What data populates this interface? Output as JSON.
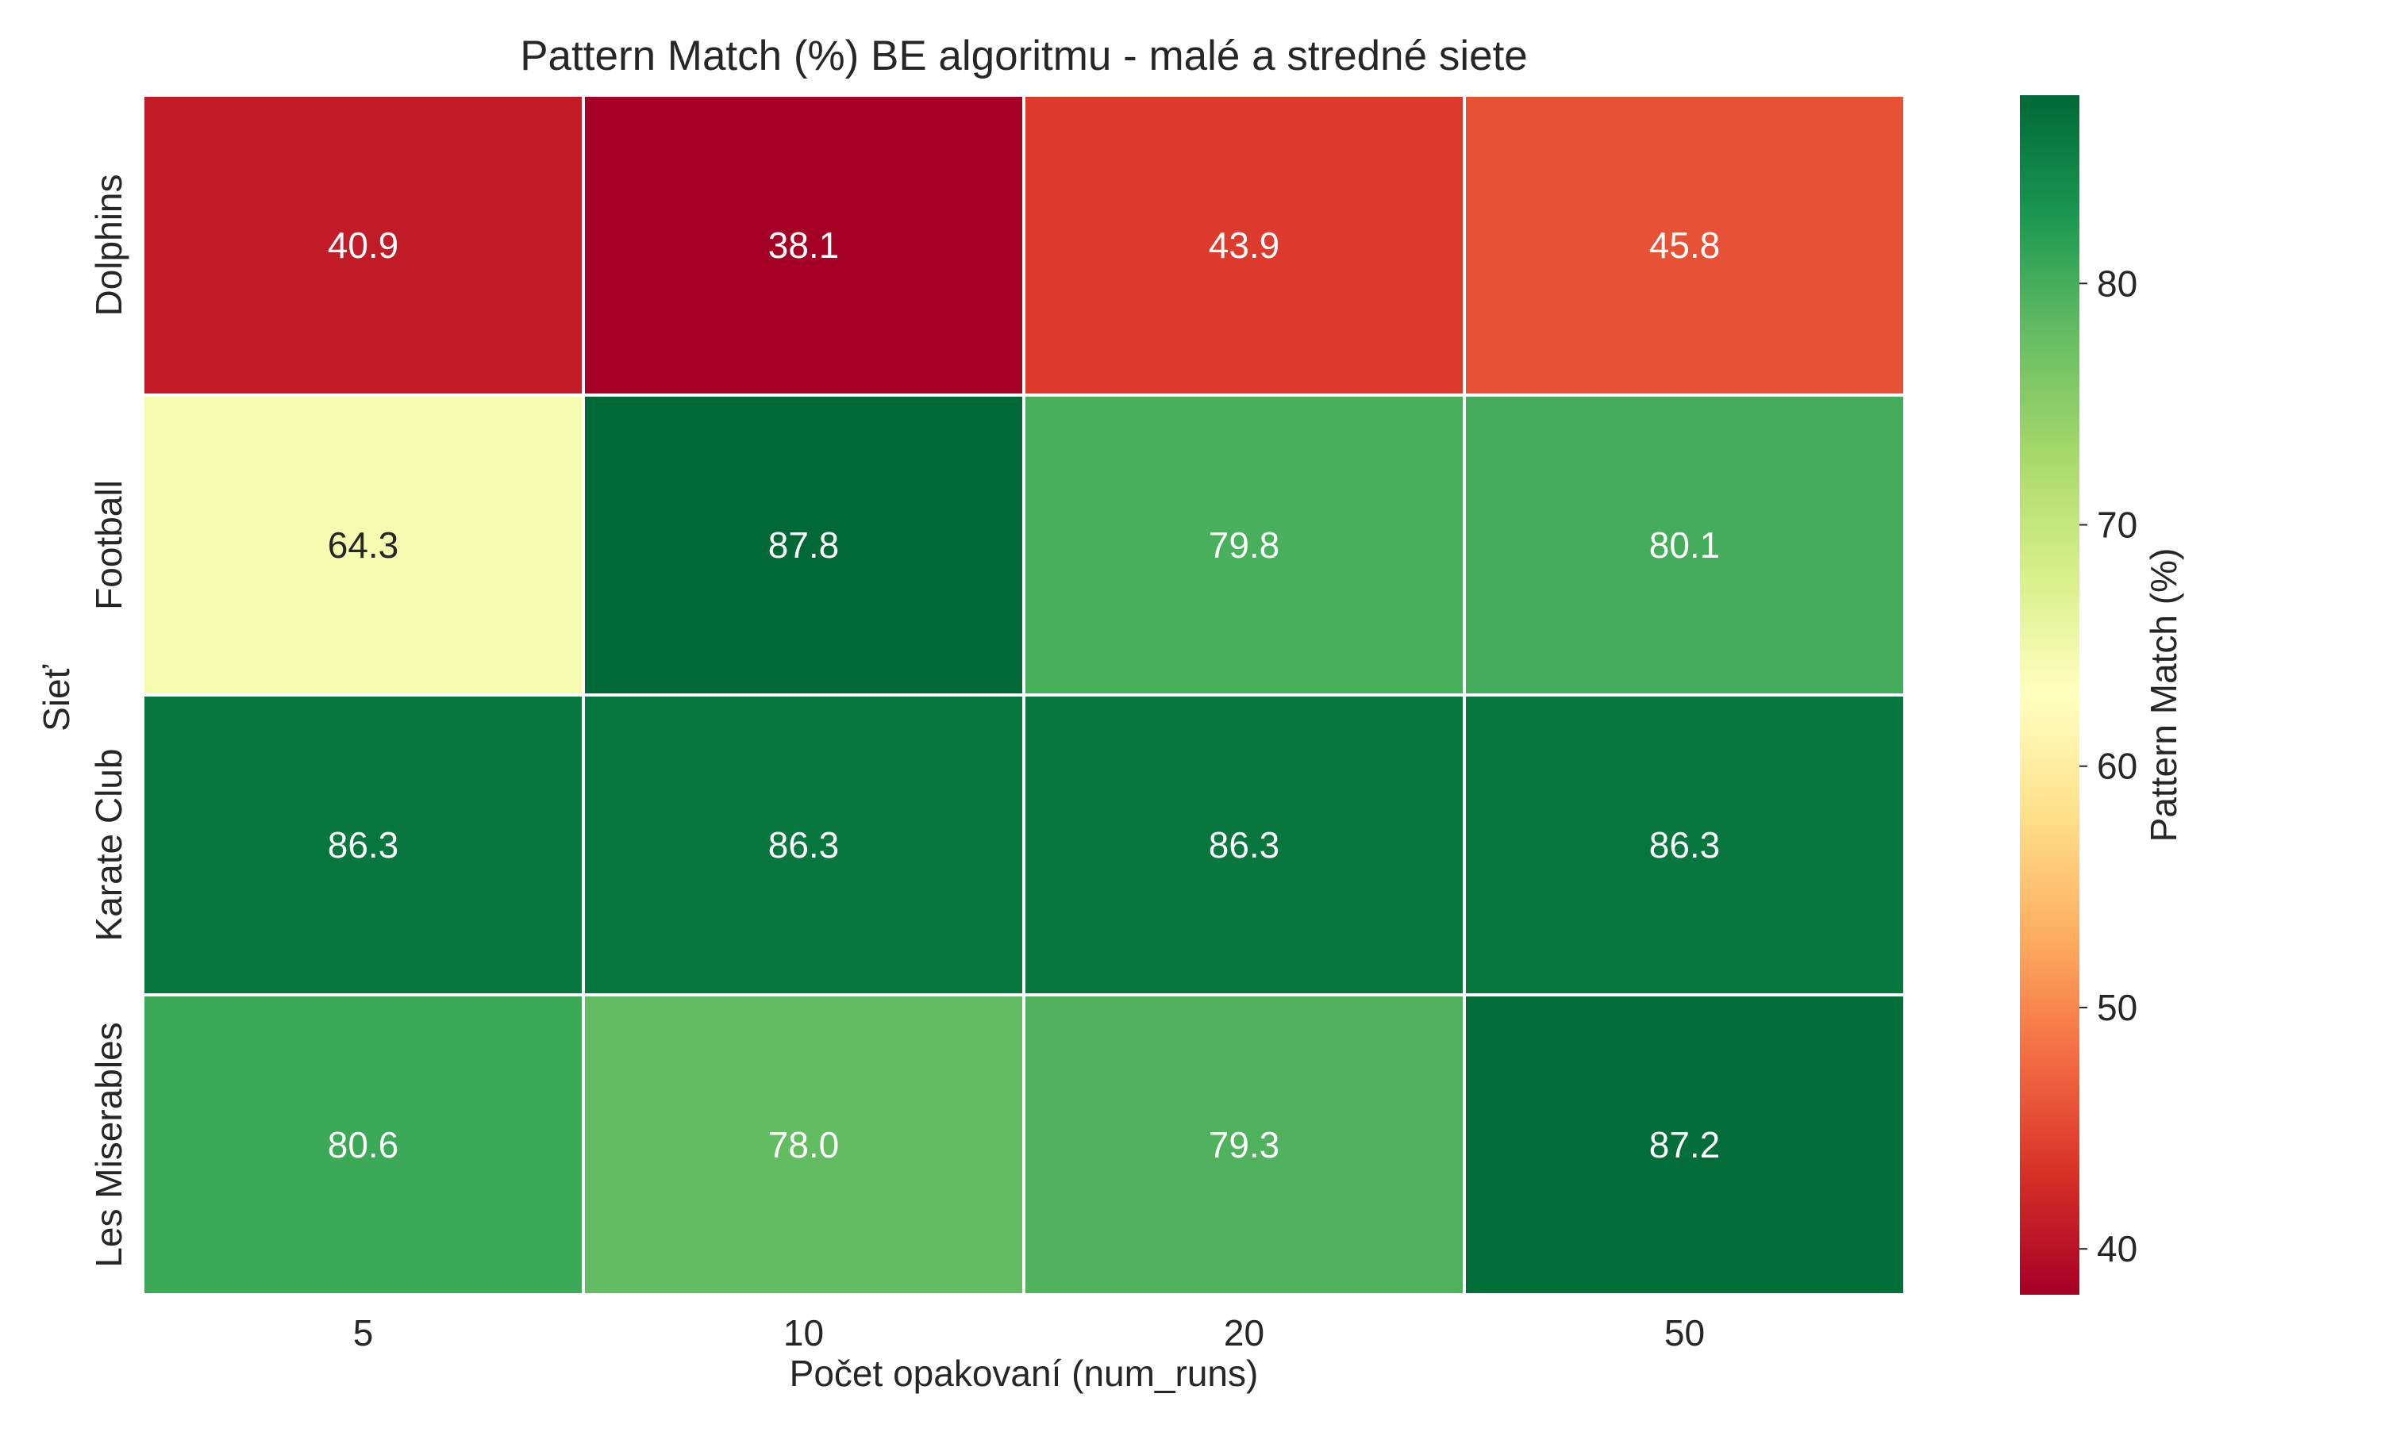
{
  "chart_data": {
    "type": "heatmap",
    "title": "Pattern Match (%) BE algoritmu - malé a stredné siete",
    "xlabel": "Počet opakovaní (num_runs)",
    "ylabel": "Sieť",
    "x_categories": [
      "5",
      "10",
      "20",
      "50"
    ],
    "y_categories": [
      "Dolphins",
      "Football",
      "Karate Club",
      "Les Miserables"
    ],
    "values": [
      [
        40.9,
        38.1,
        43.9,
        45.8
      ],
      [
        64.3,
        87.8,
        79.8,
        80.1
      ],
      [
        86.3,
        86.3,
        86.3,
        86.3
      ],
      [
        80.6,
        78.0,
        79.3,
        87.2
      ]
    ],
    "value_format": "0.0",
    "colormap": "RdYlGn",
    "vmin": 38.1,
    "vmax": 87.8,
    "colorbar": {
      "label": "Pattern Match (%)",
      "ticks": [
        40,
        50,
        60,
        70,
        80
      ]
    },
    "colors": {
      "cmap_stops": [
        "#a50026",
        "#d73027",
        "#f46d43",
        "#fdae61",
        "#fee08b",
        "#ffffbf",
        "#d9ef8b",
        "#a6d96a",
        "#66bd63",
        "#1a9850",
        "#006837"
      ],
      "cell_border": "#ffffff",
      "text_dark": "#262626",
      "text_light": "#ffffff"
    }
  }
}
